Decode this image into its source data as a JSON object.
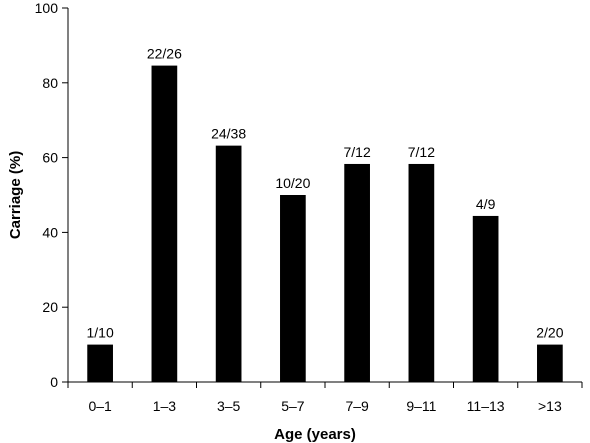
{
  "chart_data": {
    "type": "bar",
    "title": "",
    "xlabel": "Age (years)",
    "ylabel": "Carriage (%)",
    "ylim": [
      0,
      100
    ],
    "yticks": [
      0,
      20,
      40,
      60,
      80,
      100
    ],
    "grid": false,
    "categories": [
      "0–1",
      "1–3",
      "3–5",
      "5–7",
      "7–9",
      "9–11",
      "11–13",
      ">13"
    ],
    "values": [
      10,
      84.6,
      63.2,
      50,
      58.3,
      58.3,
      44.4,
      10
    ],
    "data_labels": [
      "1/10",
      "22/26",
      "24/38",
      "10/20",
      "7/12",
      "7/12",
      "4/9",
      "2/20"
    ],
    "bar_color": "#000000"
  }
}
